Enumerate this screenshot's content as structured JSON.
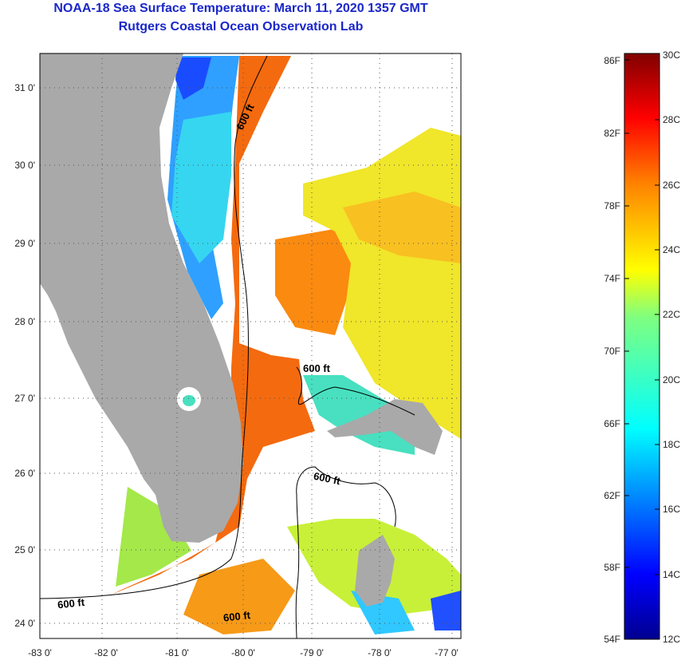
{
  "title": "NOAA-18 Sea Surface Temperature:  March 11, 2020 1357 GMT",
  "subtitle": "Rutgers Coastal Ocean Observation Lab",
  "map": {
    "lon_labels": [
      "-83 0'",
      "-82 0'",
      "-81 0'",
      "-80 0'",
      "-79 0'",
      "-78 0'",
      "-77 0'"
    ],
    "lat_labels": [
      "31 0'",
      "30 0'",
      "29 0'",
      "28 0'",
      "27 0'",
      "26 0'",
      "25 0'",
      "24 0'"
    ],
    "contour_labels": [
      "600 ft",
      "600 ft",
      "600 ft",
      "600 ft",
      "600 ft"
    ],
    "colors": {
      "land": "#a9a9a9",
      "missing": "#ffffff",
      "frame": "#000000"
    }
  },
  "colorbar": {
    "fahrenheit_labels": [
      "86F",
      "82F",
      "78F",
      "74F",
      "70F",
      "66F",
      "62F",
      "58F",
      "54F"
    ],
    "celsius_labels": [
      "30C",
      "28C",
      "26C",
      "24C",
      "22C",
      "20C",
      "18C",
      "16C",
      "14C",
      "12C"
    ],
    "range_c": [
      12,
      30
    ],
    "colormap": "jet"
  }
}
